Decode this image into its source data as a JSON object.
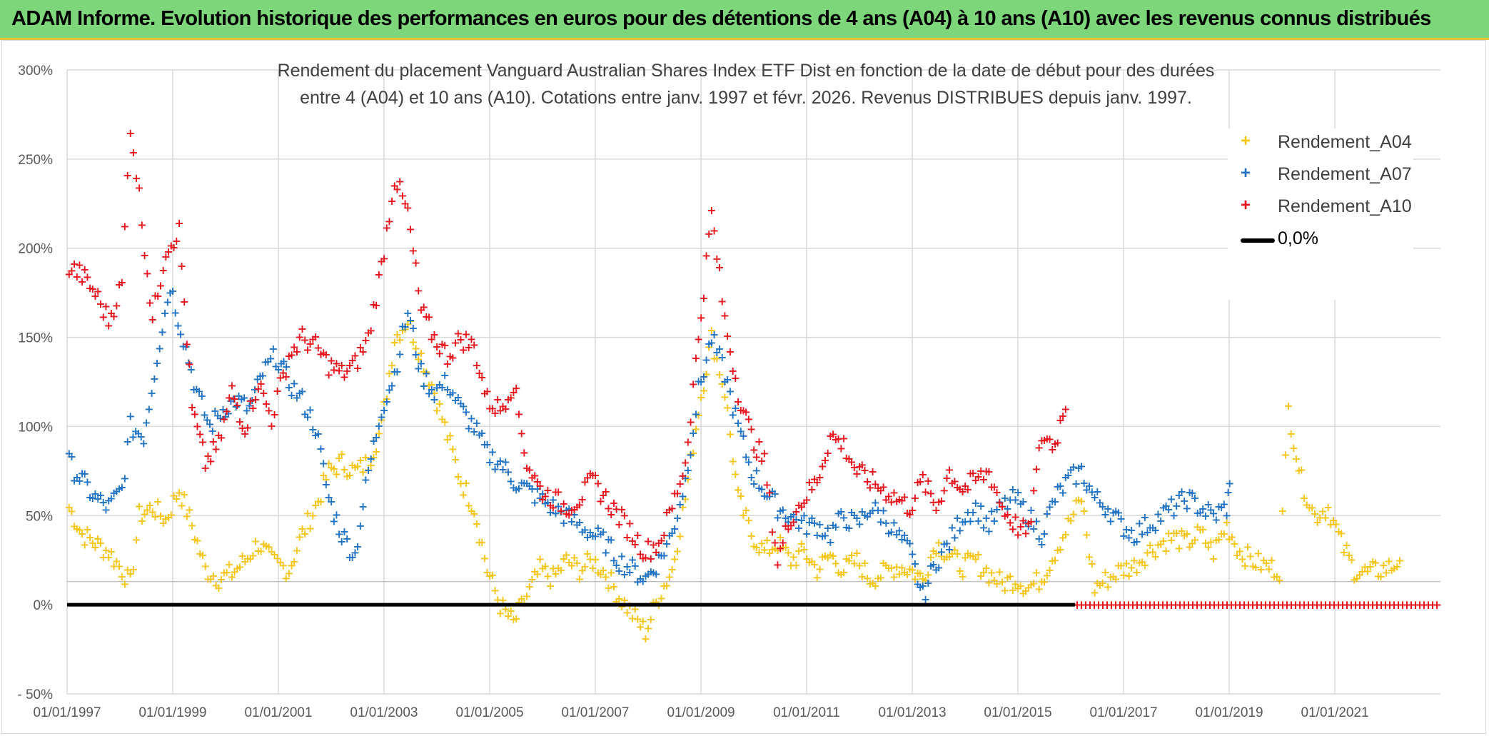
{
  "banner": {
    "text": "ADAM Informe. Evolution historique des performances en euros pour des détentions de 4 ans (A04) à 10 ans (A10) avec les revenus connus distribués"
  },
  "colors": {
    "banner_bg": "#7dd67a",
    "A04": "#f5c518",
    "A07": "#1f72c4",
    "A10": "#e8141b",
    "zero_line": "#000000",
    "grid": "#d9d9d9"
  },
  "chart_data": {
    "type": "scatter",
    "title_line1": "Rendement du placement Vanguard Australian Shares Index ETF Dist en fonction de la date de début pour des durées",
    "title_line2": "entre 4 (A04) et 10 ans (A10). Cotations entre janv. 1997 et févr. 2026. Revenus DISTRIBUES depuis janv. 1997.",
    "x_ticks": [
      "01/01/1997",
      "01/01/1999",
      "01/01/2001",
      "01/01/2003",
      "01/01/2005",
      "01/01/2007",
      "01/01/2009",
      "01/01/2011",
      "01/01/2013",
      "01/01/2015",
      "01/01/2017",
      "01/01/2019",
      "01/01/2021"
    ],
    "xlim": [
      "1997-01-01",
      "2023-01-01"
    ],
    "y_ticks": [
      "300%",
      "250%",
      "200%",
      "150%",
      "100%",
      "50%",
      "0%",
      "- 50%"
    ],
    "ylim": [
      -50,
      300
    ],
    "grid": true,
    "legend_position": "top-right",
    "series": [
      {
        "name": "Rendement_A04",
        "marker": "+",
        "points": [
          [
            "1997-01",
            55
          ],
          [
            "1997-04",
            40
          ],
          [
            "1997-07",
            35
          ],
          [
            "1997-10",
            30
          ],
          [
            "1998-01",
            20
          ],
          [
            "1998-03",
            12
          ],
          [
            "1998-05",
            50
          ],
          [
            "1998-08",
            55
          ],
          [
            "1998-11",
            48
          ],
          [
            "1999-02",
            65
          ],
          [
            "1999-05",
            45
          ],
          [
            "1999-08",
            20
          ],
          [
            "1999-11",
            15
          ],
          [
            "2000-02",
            18
          ],
          [
            "2000-05",
            25
          ],
          [
            "2000-08",
            35
          ],
          [
            "2000-11",
            25
          ],
          [
            "2001-03",
            20
          ],
          [
            "2001-06",
            40
          ],
          [
            "2001-09",
            55
          ],
          [
            "2001-12",
            75
          ],
          [
            "2002-03",
            80
          ],
          [
            "2002-06",
            75
          ],
          [
            "2002-09",
            80
          ],
          [
            "2002-12",
            100
          ],
          [
            "2003-03",
            150
          ],
          [
            "2003-06",
            160
          ],
          [
            "2003-09",
            140
          ],
          [
            "2003-12",
            120
          ],
          [
            "2004-03",
            95
          ],
          [
            "2004-06",
            70
          ],
          [
            "2004-09",
            55
          ],
          [
            "2004-12",
            20
          ],
          [
            "2005-03",
            0
          ],
          [
            "2005-06",
            -10
          ],
          [
            "2005-09",
            5
          ],
          [
            "2005-12",
            20
          ],
          [
            "2006-03",
            15
          ],
          [
            "2006-06",
            25
          ],
          [
            "2006-09",
            20
          ],
          [
            "2006-12",
            25
          ],
          [
            "2007-03",
            18
          ],
          [
            "2007-06",
            5
          ],
          [
            "2007-09",
            -5
          ],
          [
            "2007-12",
            -15
          ],
          [
            "2008-03",
            5
          ],
          [
            "2008-06",
            20
          ],
          [
            "2008-09",
            60
          ],
          [
            "2008-12",
            110
          ],
          [
            "2009-03",
            150
          ],
          [
            "2009-06",
            120
          ],
          [
            "2009-09",
            60
          ],
          [
            "2009-12",
            40
          ],
          [
            "2010-03",
            30
          ],
          [
            "2010-06",
            35
          ],
          [
            "2010-09",
            25
          ],
          [
            "2010-12",
            30
          ],
          [
            "2011-03",
            20
          ],
          [
            "2011-06",
            28
          ],
          [
            "2011-09",
            20
          ],
          [
            "2011-12",
            25
          ],
          [
            "2012-03",
            15
          ],
          [
            "2012-06",
            18
          ],
          [
            "2012-09",
            22
          ],
          [
            "2012-12",
            20
          ],
          [
            "2013-03",
            15
          ],
          [
            "2013-06",
            35
          ],
          [
            "2013-09",
            28
          ],
          [
            "2013-12",
            22
          ],
          [
            "2014-03",
            25
          ],
          [
            "2014-06",
            18
          ],
          [
            "2014-09",
            12
          ],
          [
            "2014-12",
            15
          ],
          [
            "2015-03",
            10
          ],
          [
            "2015-06",
            15
          ],
          [
            "2015-09",
            30
          ],
          [
            "2015-12",
            45
          ],
          [
            "2016-03",
            60
          ],
          [
            "2016-06",
            10
          ],
          [
            "2016-09",
            15
          ],
          [
            "2016-12",
            20
          ],
          [
            "2017-03",
            22
          ],
          [
            "2017-06",
            30
          ],
          [
            "2017-09",
            35
          ],
          [
            "2017-12",
            38
          ],
          [
            "2018-03",
            35
          ],
          [
            "2018-06",
            40
          ],
          [
            "2018-09",
            30
          ],
          [
            "2018-12",
            45
          ],
          [
            "2019-03",
            30
          ],
          [
            "2019-06",
            25
          ],
          [
            "2019-09",
            22
          ],
          [
            "2019-12",
            20
          ],
          [
            "2020-02",
            110
          ],
          [
            "2020-05",
            70
          ],
          [
            "2020-08",
            50
          ],
          [
            "2020-11",
            55
          ],
          [
            "2021-02",
            35
          ],
          [
            "2021-05",
            20
          ],
          [
            "2021-08",
            18
          ],
          [
            "2021-11",
            20
          ],
          [
            "2022-02",
            22
          ],
          [
            "2022-04",
            30
          ]
        ]
      },
      {
        "name": "Rendement_A07",
        "marker": "+",
        "points": [
          [
            "1997-01",
            80
          ],
          [
            "1997-04",
            70
          ],
          [
            "1997-07",
            60
          ],
          [
            "1997-10",
            55
          ],
          [
            "1998-01",
            65
          ],
          [
            "1998-03",
            100
          ],
          [
            "1998-06",
            95
          ],
          [
            "1998-09",
            140
          ],
          [
            "1998-12",
            180
          ],
          [
            "1999-03",
            150
          ],
          [
            "1999-06",
            120
          ],
          [
            "1999-09",
            100
          ],
          [
            "1999-12",
            110
          ],
          [
            "2000-03",
            115
          ],
          [
            "2000-06",
            110
          ],
          [
            "2000-09",
            130
          ],
          [
            "2000-12",
            140
          ],
          [
            "2001-03",
            125
          ],
          [
            "2001-06",
            115
          ],
          [
            "2001-09",
            100
          ],
          [
            "2001-12",
            60
          ],
          [
            "2002-03",
            40
          ],
          [
            "2002-06",
            28
          ],
          [
            "2002-09",
            75
          ],
          [
            "2002-12",
            110
          ],
          [
            "2003-03",
            130
          ],
          [
            "2003-06",
            165
          ],
          [
            "2003-09",
            130
          ],
          [
            "2003-12",
            120
          ],
          [
            "2004-03",
            125
          ],
          [
            "2004-06",
            110
          ],
          [
            "2004-09",
            100
          ],
          [
            "2004-12",
            85
          ],
          [
            "2005-03",
            80
          ],
          [
            "2005-06",
            70
          ],
          [
            "2005-09",
            65
          ],
          [
            "2005-12",
            60
          ],
          [
            "2006-03",
            55
          ],
          [
            "2006-06",
            50
          ],
          [
            "2006-09",
            45
          ],
          [
            "2006-12",
            40
          ],
          [
            "2007-03",
            35
          ],
          [
            "2007-06",
            25
          ],
          [
            "2007-09",
            20
          ],
          [
            "2007-12",
            15
          ],
          [
            "2008-03",
            25
          ],
          [
            "2008-06",
            40
          ],
          [
            "2008-09",
            70
          ],
          [
            "2008-12",
            120
          ],
          [
            "2009-03",
            150
          ],
          [
            "2009-06",
            130
          ],
          [
            "2009-09",
            100
          ],
          [
            "2009-12",
            75
          ],
          [
            "2010-03",
            65
          ],
          [
            "2010-06",
            55
          ],
          [
            "2010-09",
            50
          ],
          [
            "2010-12",
            45
          ],
          [
            "2011-03",
            45
          ],
          [
            "2011-06",
            40
          ],
          [
            "2011-09",
            50
          ],
          [
            "2011-12",
            45
          ],
          [
            "2012-03",
            55
          ],
          [
            "2012-06",
            50
          ],
          [
            "2012-09",
            40
          ],
          [
            "2012-12",
            30
          ],
          [
            "2013-03",
            5
          ],
          [
            "2013-06",
            25
          ],
          [
            "2013-09",
            35
          ],
          [
            "2013-12",
            50
          ],
          [
            "2014-03",
            55
          ],
          [
            "2014-06",
            45
          ],
          [
            "2014-09",
            55
          ],
          [
            "2014-12",
            60
          ],
          [
            "2015-03",
            50
          ],
          [
            "2015-06",
            40
          ],
          [
            "2015-09",
            60
          ],
          [
            "2015-12",
            70
          ],
          [
            "2016-03",
            75
          ],
          [
            "2016-06",
            60
          ],
          [
            "2016-09",
            55
          ],
          [
            "2016-12",
            45
          ],
          [
            "2017-03",
            40
          ],
          [
            "2017-06",
            45
          ],
          [
            "2017-09",
            50
          ],
          [
            "2017-12",
            55
          ],
          [
            "2018-03",
            60
          ],
          [
            "2018-06",
            55
          ],
          [
            "2018-09",
            50
          ],
          [
            "2018-12",
            55
          ],
          [
            "2019-01",
            70
          ]
        ]
      },
      {
        "name": "Rendement_A10",
        "marker": "+",
        "points": [
          [
            "1997-01",
            190
          ],
          [
            "1997-04",
            185
          ],
          [
            "1997-07",
            175
          ],
          [
            "1997-10",
            160
          ],
          [
            "1998-01",
            180
          ],
          [
            "1998-03",
            270
          ],
          [
            "1998-05",
            230
          ],
          [
            "1998-08",
            160
          ],
          [
            "1998-11",
            200
          ],
          [
            "1999-02",
            210
          ],
          [
            "1999-05",
            110
          ],
          [
            "1999-08",
            80
          ],
          [
            "1999-11",
            90
          ],
          [
            "2000-02",
            120
          ],
          [
            "2000-05",
            100
          ],
          [
            "2000-08",
            125
          ],
          [
            "2000-11",
            105
          ],
          [
            "2001-03",
            140
          ],
          [
            "2001-06",
            150
          ],
          [
            "2001-09",
            145
          ],
          [
            "2001-12",
            135
          ],
          [
            "2002-03",
            130
          ],
          [
            "2002-06",
            135
          ],
          [
            "2002-09",
            150
          ],
          [
            "2002-12",
            190
          ],
          [
            "2003-03",
            240
          ],
          [
            "2003-06",
            220
          ],
          [
            "2003-09",
            165
          ],
          [
            "2003-12",
            150
          ],
          [
            "2004-03",
            140
          ],
          [
            "2004-06",
            150
          ],
          [
            "2004-09",
            145
          ],
          [
            "2004-12",
            115
          ],
          [
            "2005-03",
            110
          ],
          [
            "2005-06",
            125
          ],
          [
            "2005-09",
            80
          ],
          [
            "2005-12",
            65
          ],
          [
            "2006-03",
            60
          ],
          [
            "2006-06",
            55
          ],
          [
            "2006-09",
            60
          ],
          [
            "2006-12",
            70
          ],
          [
            "2007-03",
            60
          ],
          [
            "2007-06",
            50
          ],
          [
            "2007-09",
            40
          ],
          [
            "2007-12",
            30
          ],
          [
            "2008-03",
            35
          ],
          [
            "2008-06",
            55
          ],
          [
            "2008-09",
            80
          ],
          [
            "2008-12",
            150
          ],
          [
            "2009-03",
            220
          ],
          [
            "2009-06",
            160
          ],
          [
            "2009-09",
            120
          ],
          [
            "2009-12",
            95
          ],
          [
            "2010-03",
            80
          ],
          [
            "2010-06",
            25
          ],
          [
            "2010-09",
            50
          ],
          [
            "2010-12",
            60
          ],
          [
            "2011-03",
            70
          ],
          [
            "2011-06",
            95
          ],
          [
            "2011-09",
            90
          ],
          [
            "2011-12",
            75
          ],
          [
            "2012-03",
            70
          ],
          [
            "2012-06",
            65
          ],
          [
            "2012-09",
            60
          ],
          [
            "2012-12",
            55
          ],
          [
            "2013-03",
            70
          ],
          [
            "2013-06",
            55
          ],
          [
            "2013-09",
            75
          ],
          [
            "2013-12",
            65
          ],
          [
            "2014-03",
            70
          ],
          [
            "2014-06",
            75
          ],
          [
            "2014-09",
            55
          ],
          [
            "2014-12",
            45
          ],
          [
            "2015-03",
            40
          ],
          [
            "2015-06",
            95
          ],
          [
            "2015-09",
            90
          ],
          [
            "2015-12",
            120
          ]
        ]
      },
      {
        "name": "Rendement_A10",
        "marker": "+",
        "note_zero_run": true,
        "points": [
          [
            "2016-02",
            0
          ],
          [
            "2022-12",
            0
          ]
        ]
      }
    ],
    "reference_line": {
      "name": "0,0%",
      "y": 0
    }
  },
  "legend": {
    "items": [
      {
        "label": "Rendement_A04",
        "symbol": "+",
        "color": "#f5c518"
      },
      {
        "label": "Rendement_A07",
        "symbol": "+",
        "color": "#1f72c4"
      },
      {
        "label": "Rendement_A10",
        "symbol": "+",
        "color": "#e8141b"
      },
      {
        "label": "0,0%",
        "symbol": "line",
        "color": "#000000"
      }
    ]
  }
}
